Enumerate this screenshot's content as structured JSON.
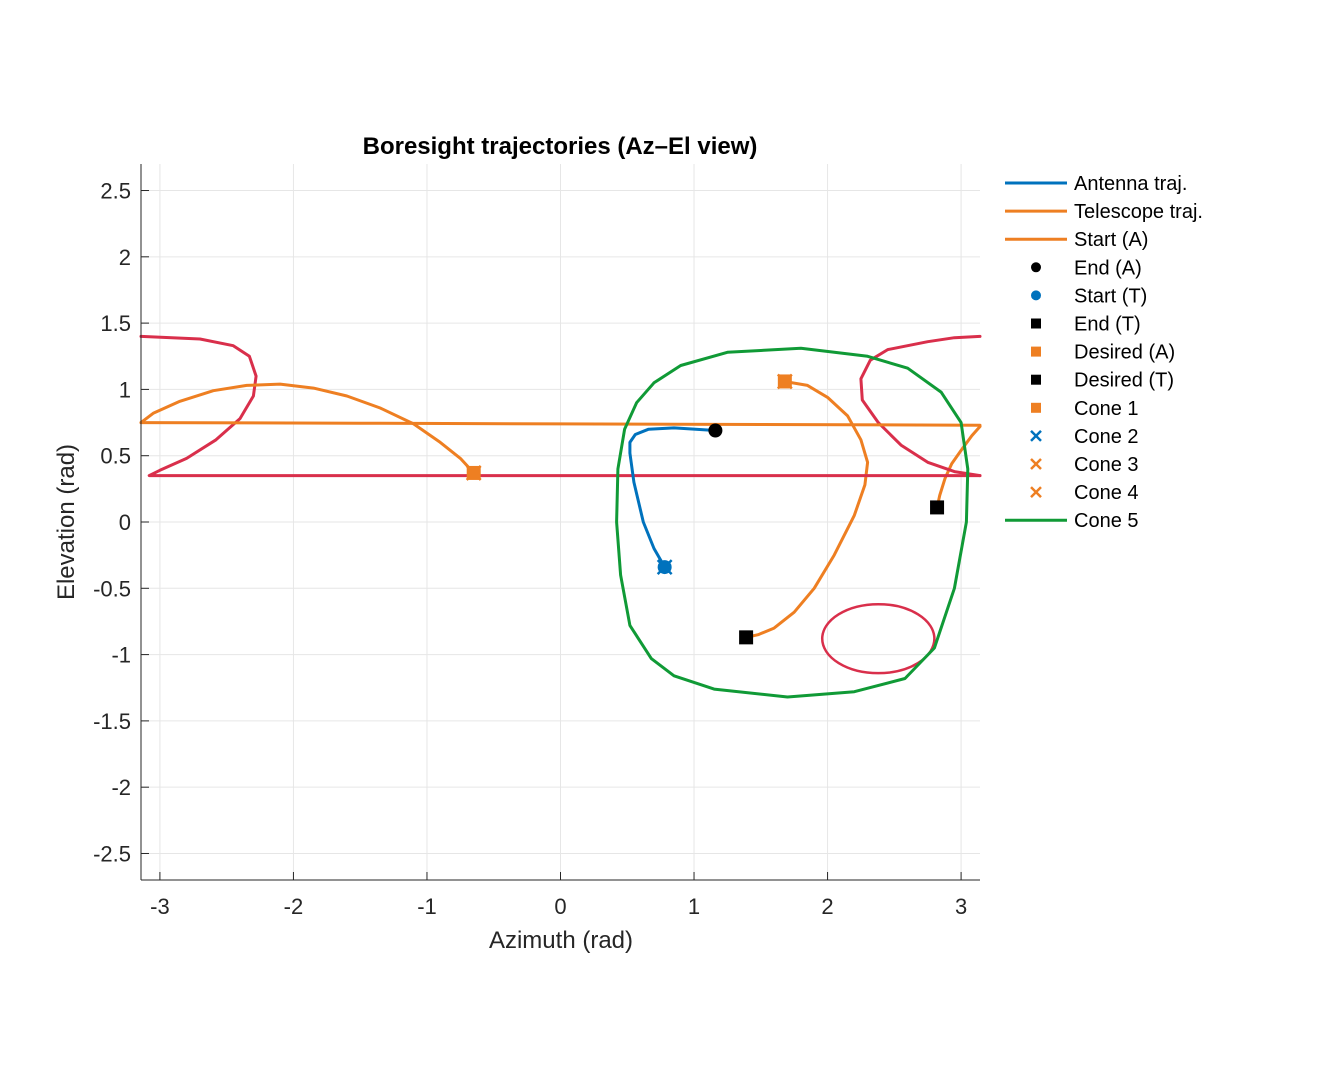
{
  "chart_data": {
    "type": "line",
    "title": "Boresight trajectories (Az–El view)",
    "xlabel": "Azimuth (rad)",
    "ylabel": "Elevation (rad)",
    "xlim": [
      -3.1416,
      3.1416
    ],
    "ylim": [
      -2.7,
      2.7
    ],
    "xticks": [
      -3,
      -2,
      -1,
      0,
      1,
      2,
      3
    ],
    "yticks": [
      -2.5,
      -2,
      -1.5,
      -1,
      -0.5,
      0,
      0.5,
      1,
      1.5,
      2,
      2.5
    ],
    "grid": true,
    "legend_position": "outside-right",
    "series": [
      {
        "name": "Antenna traj.",
        "kind": "line",
        "color": "#0072BD",
        "x": [
          0.78,
          0.7,
          0.62,
          0.55,
          0.52,
          0.52,
          0.56,
          0.66,
          0.85,
          1.16
        ],
        "y": [
          -0.34,
          -0.2,
          0.0,
          0.3,
          0.52,
          0.6,
          0.66,
          0.7,
          0.71,
          0.69
        ]
      },
      {
        "name": "Telescope traj.",
        "kind": "line",
        "color": "#EE7F22",
        "x": [
          -0.65,
          -0.75,
          -0.9,
          -1.1,
          -1.35,
          -1.6,
          -1.85,
          -2.1,
          -2.35,
          -2.6,
          -2.85,
          -3.05,
          -3.1416
        ],
        "y": [
          0.37,
          0.48,
          0.6,
          0.74,
          0.86,
          0.95,
          1.01,
          1.04,
          1.03,
          0.99,
          0.91,
          0.82,
          0.75
        ]
      },
      {
        "name": "Start (A)",
        "kind": "line",
        "color": "#EE7F22",
        "x": [
          -3.1416,
          -1.5,
          0.0,
          1.5,
          3.1416
        ],
        "y": [
          0.75,
          0.745,
          0.74,
          0.735,
          0.73
        ]
      },
      {
        "name": "End (A)",
        "kind": "marker",
        "marker": "circle",
        "color": "#000000",
        "x": [
          1.16
        ],
        "y": [
          0.69
        ]
      },
      {
        "name": "Start (T)",
        "kind": "marker",
        "marker": "circle",
        "color": "#0072BD",
        "x": [
          0.78
        ],
        "y": [
          -0.34
        ]
      },
      {
        "name": "End (T)",
        "kind": "marker",
        "marker": "square",
        "color": "#000000",
        "x": [
          1.39
        ],
        "y": [
          -0.87
        ]
      },
      {
        "name": "Desired (A)",
        "kind": "marker",
        "marker": "square",
        "color": "#EE7F22",
        "x": [
          1.68
        ],
        "y": [
          1.06
        ]
      },
      {
        "name": "Desired (T)",
        "kind": "marker",
        "marker": "square",
        "color": "#000000",
        "x": [
          2.82
        ],
        "y": [
          0.11
        ]
      },
      {
        "name": "Cone 1",
        "kind": "marker",
        "marker": "square",
        "color": "#EE7F22",
        "x": [
          -0.65
        ],
        "y": [
          0.37
        ]
      },
      {
        "name": "Cone 2",
        "kind": "marker",
        "marker": "x",
        "color": "#0072BD",
        "x": [
          0.78
        ],
        "y": [
          -0.34
        ]
      },
      {
        "name": "Cone 3",
        "kind": "marker",
        "marker": "x",
        "color": "#EE7F22",
        "x": [
          1.68
        ],
        "y": [
          1.06
        ]
      },
      {
        "name": "Cone 4",
        "kind": "marker",
        "marker": "x",
        "color": "#EE7F22",
        "x": [
          -0.65
        ],
        "y": [
          0.37
        ]
      },
      {
        "name": "Cone 5",
        "kind": "line",
        "color": "#109A36",
        "x": [
          0.7,
          0.9,
          1.25,
          1.8,
          2.3,
          2.6,
          2.85,
          3.0,
          3.05,
          3.04,
          2.95,
          2.8,
          2.58,
          2.2,
          1.7,
          1.15,
          0.85,
          0.68,
          0.52,
          0.45,
          0.42,
          0.43,
          0.48,
          0.57,
          0.7
        ],
        "y": [
          1.05,
          1.18,
          1.28,
          1.31,
          1.25,
          1.16,
          0.98,
          0.75,
          0.4,
          0.0,
          -0.5,
          -0.95,
          -1.18,
          -1.28,
          -1.32,
          -1.26,
          -1.16,
          -1.03,
          -0.78,
          -0.4,
          0.0,
          0.4,
          0.7,
          0.9,
          1.05
        ]
      }
    ],
    "extra_lines": [
      {
        "color": "#EE7F22",
        "x": [
          1.68,
          1.85,
          2.0,
          2.15,
          2.25,
          2.3,
          2.28,
          2.2,
          2.05,
          1.9,
          1.75,
          1.6,
          1.48,
          1.39
        ],
        "y": [
          1.06,
          1.03,
          0.94,
          0.8,
          0.62,
          0.45,
          0.28,
          0.05,
          -0.25,
          -0.5,
          -0.68,
          -0.8,
          -0.85,
          -0.87
        ]
      },
      {
        "color": "#EE7F22",
        "x": [
          2.82,
          2.84,
          2.88,
          2.93,
          3.0,
          3.08,
          3.1416
        ],
        "y": [
          0.11,
          0.2,
          0.33,
          0.44,
          0.54,
          0.65,
          0.72
        ]
      },
      {
        "color": "#D92F4B",
        "x": [
          -3.1416,
          -2.7,
          -2.45,
          -2.33,
          -2.28,
          -2.3,
          -2.4,
          -2.58,
          -2.8,
          -3.0,
          -3.08,
          -1.0,
          1.0,
          3.1416
        ],
        "y": [
          1.4,
          1.38,
          1.33,
          1.25,
          1.1,
          0.95,
          0.78,
          0.62,
          0.48,
          0.39,
          0.35,
          0.35,
          0.35,
          0.35
        ]
      },
      {
        "color": "#D92F4B",
        "x": [
          3.1416,
          2.95,
          2.75,
          2.45,
          2.32,
          2.25,
          2.26,
          2.38,
          2.55,
          2.75,
          2.95,
          3.1416
        ],
        "y": [
          1.4,
          1.39,
          1.36,
          1.3,
          1.22,
          1.08,
          0.92,
          0.75,
          0.58,
          0.45,
          0.38,
          0.35
        ]
      },
      {
        "color": "#D92F4B",
        "ellipse": true,
        "cx": 2.38,
        "cy": -0.88,
        "rx": 0.42,
        "ry": 0.26
      }
    ]
  }
}
